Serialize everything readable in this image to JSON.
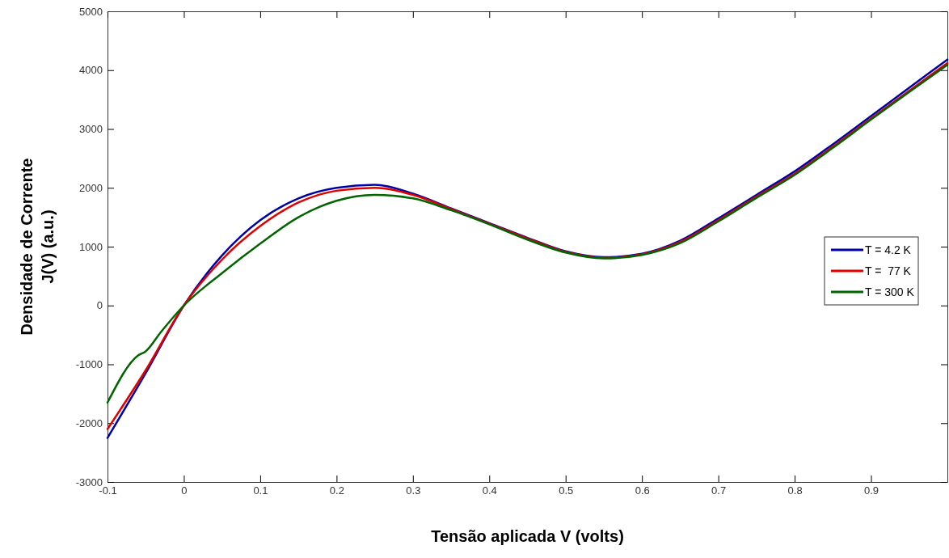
{
  "chart_data": {
    "type": "line",
    "xlabel": "Tensão aplicada V (volts)",
    "ylabel": "Densidade de Corrente\nJ(V) (a.u.)",
    "xlim": [
      -0.1,
      1
    ],
    "xticks": [
      -0.1,
      0,
      0.1,
      0.2,
      0.3,
      0.4,
      0.5,
      0.6,
      0.7,
      0.8,
      0.9
    ],
    "ylim": [
      -3000,
      5000
    ],
    "yticks": [
      -3000,
      -2000,
      -1000,
      0,
      1000,
      2000,
      3000,
      4000,
      5000
    ],
    "grid": false,
    "legend": "right",
    "marker": "none",
    "line_style": "solid",
    "series": [
      {
        "name": "T = 4.2 K",
        "color": "#0000a8",
        "x": [
          -0.1,
          -0.05,
          0,
          0.05,
          0.1,
          0.15,
          0.2,
          0.25,
          0.3,
          0.35,
          0.4,
          0.45,
          0.5,
          0.55,
          0.6,
          0.65,
          0.7,
          0.75,
          0.8,
          0.85,
          0.9,
          0.95,
          1
        ],
        "values": [
          -2250,
          -1150,
          0,
          850,
          1450,
          1820,
          2000,
          2050,
          1900,
          1650,
          1400,
          1150,
          920,
          820,
          880,
          1100,
          1480,
          1880,
          2280,
          2740,
          3220,
          3700,
          4180
        ]
      },
      {
        "name": "T =  77 K",
        "color": "#e00000",
        "x": [
          -0.1,
          -0.05,
          0,
          0.05,
          0.1,
          0.15,
          0.2,
          0.25,
          0.3,
          0.35,
          0.4,
          0.45,
          0.5,
          0.55,
          0.6,
          0.65,
          0.7,
          0.75,
          0.8,
          0.85,
          0.9,
          0.95,
          1
        ],
        "values": [
          -2100,
          -1100,
          0,
          780,
          1350,
          1750,
          1950,
          2000,
          1880,
          1640,
          1390,
          1140,
          910,
          810,
          870,
          1080,
          1450,
          1850,
          2240,
          2700,
          3180,
          3650,
          4120
        ]
      },
      {
        "name": "T = 300 K",
        "color": "#006400",
        "x": [
          -0.1,
          -0.06,
          -0.05,
          -0.03,
          0,
          0.05,
          0.1,
          0.15,
          0.2,
          0.25,
          0.3,
          0.35,
          0.4,
          0.45,
          0.5,
          0.55,
          0.6,
          0.65,
          0.7,
          0.75,
          0.8,
          0.85,
          0.9,
          0.95,
          1
        ],
        "values": [
          -1650,
          -850,
          -780,
          -450,
          0,
          550,
          1050,
          1500,
          1780,
          1880,
          1820,
          1620,
          1380,
          1120,
          900,
          800,
          860,
          1060,
          1430,
          1830,
          2220,
          2680,
          3160,
          3630,
          4090
        ]
      }
    ]
  }
}
